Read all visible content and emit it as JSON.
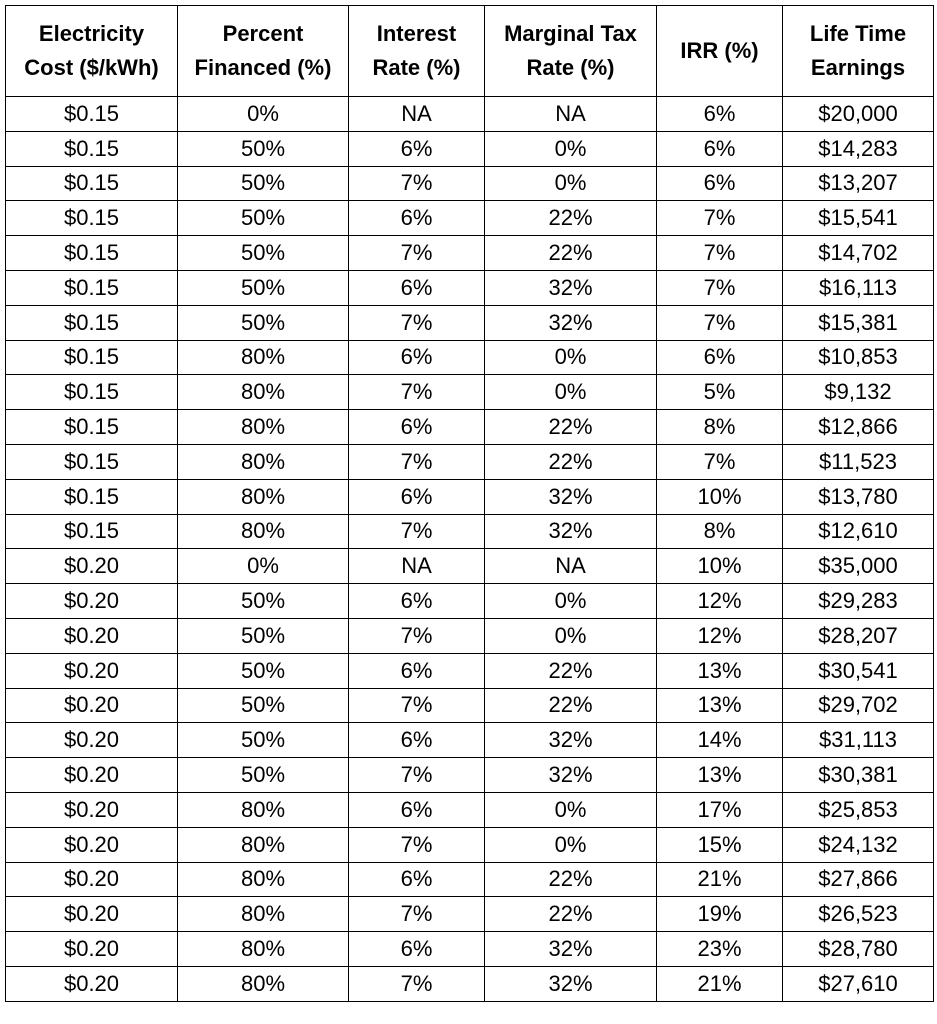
{
  "table": {
    "headers": [
      "Electricity\nCost ($/kWh)",
      "Percent\nFinanced (%)",
      "Interest\nRate (%)",
      "Marginal Tax\nRate (%)",
      "IRR (%)",
      "Life Time\nEarnings"
    ],
    "rows": [
      [
        "$0.15",
        "0%",
        "NA",
        "NA",
        "6%",
        "$20,000"
      ],
      [
        "$0.15",
        "50%",
        "6%",
        "0%",
        "6%",
        "$14,283"
      ],
      [
        "$0.15",
        "50%",
        "7%",
        "0%",
        "6%",
        "$13,207"
      ],
      [
        "$0.15",
        "50%",
        "6%",
        "22%",
        "7%",
        "$15,541"
      ],
      [
        "$0.15",
        "50%",
        "7%",
        "22%",
        "7%",
        "$14,702"
      ],
      [
        "$0.15",
        "50%",
        "6%",
        "32%",
        "7%",
        "$16,113"
      ],
      [
        "$0.15",
        "50%",
        "7%",
        "32%",
        "7%",
        "$15,381"
      ],
      [
        "$0.15",
        "80%",
        "6%",
        "0%",
        "6%",
        "$10,853"
      ],
      [
        "$0.15",
        "80%",
        "7%",
        "0%",
        "5%",
        "$9,132"
      ],
      [
        "$0.15",
        "80%",
        "6%",
        "22%",
        "8%",
        "$12,866"
      ],
      [
        "$0.15",
        "80%",
        "7%",
        "22%",
        "7%",
        "$11,523"
      ],
      [
        "$0.15",
        "80%",
        "6%",
        "32%",
        "10%",
        "$13,780"
      ],
      [
        "$0.15",
        "80%",
        "7%",
        "32%",
        "8%",
        "$12,610"
      ],
      [
        "$0.20",
        "0%",
        "NA",
        "NA",
        "10%",
        "$35,000"
      ],
      [
        "$0.20",
        "50%",
        "6%",
        "0%",
        "12%",
        "$29,283"
      ],
      [
        "$0.20",
        "50%",
        "7%",
        "0%",
        "12%",
        "$28,207"
      ],
      [
        "$0.20",
        "50%",
        "6%",
        "22%",
        "13%",
        "$30,541"
      ],
      [
        "$0.20",
        "50%",
        "7%",
        "22%",
        "13%",
        "$29,702"
      ],
      [
        "$0.20",
        "50%",
        "6%",
        "32%",
        "14%",
        "$31,113"
      ],
      [
        "$0.20",
        "50%",
        "7%",
        "32%",
        "13%",
        "$30,381"
      ],
      [
        "$0.20",
        "80%",
        "6%",
        "0%",
        "17%",
        "$25,853"
      ],
      [
        "$0.20",
        "80%",
        "7%",
        "0%",
        "15%",
        "$24,132"
      ],
      [
        "$0.20",
        "80%",
        "6%",
        "22%",
        "21%",
        "$27,866"
      ],
      [
        "$0.20",
        "80%",
        "7%",
        "22%",
        "19%",
        "$26,523"
      ],
      [
        "$0.20",
        "80%",
        "6%",
        "32%",
        "23%",
        "$28,780"
      ],
      [
        "$0.20",
        "80%",
        "7%",
        "32%",
        "21%",
        "$27,610"
      ]
    ]
  }
}
